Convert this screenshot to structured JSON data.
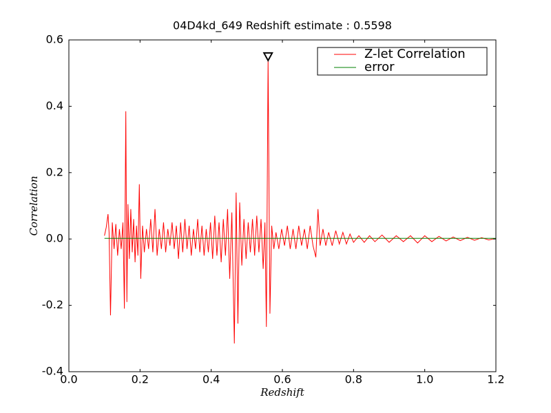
{
  "chart_data": {
    "type": "line",
    "title": "04D4kd_649 Redshift estimate : 0.5598",
    "xlabel": "Redshift",
    "ylabel": "Correlation",
    "xlim": [
      0,
      1.2
    ],
    "ylim": [
      -0.4,
      0.6
    ],
    "xticks": [
      {
        "value": 0,
        "label": "0.0"
      },
      0.2,
      0.4,
      0.6,
      0.8,
      {
        "value": 1,
        "label": "1.0"
      },
      1.2
    ],
    "yticks": [
      -0.4,
      -0.2,
      {
        "value": 0,
        "label": "0.0"
      },
      0.2,
      0.4,
      0.6
    ],
    "legend": "upper right",
    "peak": {
      "x": 0.5598,
      "y": 0.54
    },
    "series": [
      {
        "name": "Z-let Correlation",
        "color": "#ff0000",
        "x": [
          0.1,
          0.105,
          0.11,
          0.113,
          0.117,
          0.122,
          0.127,
          0.132,
          0.137,
          0.142,
          0.147,
          0.152,
          0.156,
          0.16,
          0.163,
          0.166,
          0.17,
          0.174,
          0.178,
          0.182,
          0.186,
          0.19,
          0.194,
          0.198,
          0.202,
          0.207,
          0.212,
          0.218,
          0.224,
          0.23,
          0.236,
          0.242,
          0.248,
          0.254,
          0.26,
          0.266,
          0.272,
          0.278,
          0.284,
          0.29,
          0.296,
          0.302,
          0.308,
          0.314,
          0.32,
          0.326,
          0.332,
          0.338,
          0.344,
          0.35,
          0.356,
          0.362,
          0.368,
          0.374,
          0.38,
          0.386,
          0.392,
          0.398,
          0.404,
          0.41,
          0.416,
          0.422,
          0.428,
          0.434,
          0.44,
          0.446,
          0.452,
          0.458,
          0.465,
          0.47,
          0.475,
          0.48,
          0.486,
          0.492,
          0.498,
          0.504,
          0.51,
          0.516,
          0.522,
          0.528,
          0.534,
          0.54,
          0.546,
          0.551,
          0.555,
          0.5598,
          0.565,
          0.57,
          0.576,
          0.582,
          0.59,
          0.598,
          0.606,
          0.614,
          0.622,
          0.63,
          0.638,
          0.646,
          0.654,
          0.662,
          0.67,
          0.678,
          0.686,
          0.694,
          0.7,
          0.706,
          0.714,
          0.722,
          0.73,
          0.74,
          0.75,
          0.76,
          0.77,
          0.78,
          0.79,
          0.8,
          0.815,
          0.83,
          0.845,
          0.86,
          0.88,
          0.9,
          0.92,
          0.94,
          0.96,
          0.98,
          1.0,
          1.02,
          1.04,
          1.06,
          1.08,
          1.1,
          1.12,
          1.14,
          1.16,
          1.18,
          1.2
        ],
        "values": [
          0.01,
          0.035,
          0.075,
          0.02,
          -0.23,
          0.05,
          -0.03,
          0.045,
          -0.05,
          0.03,
          -0.03,
          0.05,
          -0.21,
          0.385,
          -0.19,
          0.105,
          -0.06,
          0.09,
          -0.04,
          0.06,
          -0.07,
          0.04,
          -0.05,
          0.165,
          -0.12,
          0.04,
          -0.04,
          0.03,
          -0.03,
          0.06,
          -0.04,
          0.09,
          -0.05,
          0.03,
          -0.03,
          0.05,
          -0.04,
          0.03,
          -0.02,
          0.05,
          -0.03,
          0.04,
          -0.06,
          0.05,
          -0.04,
          0.06,
          -0.03,
          0.04,
          -0.05,
          0.03,
          -0.03,
          0.06,
          -0.04,
          0.04,
          -0.05,
          0.03,
          -0.04,
          0.05,
          -0.06,
          0.07,
          -0.05,
          0.05,
          -0.07,
          0.06,
          -0.05,
          0.09,
          -0.12,
          0.08,
          -0.315,
          0.14,
          -0.255,
          0.11,
          -0.08,
          0.06,
          -0.06,
          0.05,
          -0.04,
          0.06,
          -0.05,
          0.07,
          -0.04,
          0.06,
          -0.09,
          0.05,
          -0.265,
          0.54,
          -0.225,
          0.04,
          -0.03,
          0.02,
          -0.03,
          0.03,
          -0.02,
          0.04,
          -0.03,
          0.03,
          -0.03,
          0.04,
          -0.02,
          0.03,
          -0.03,
          0.04,
          -0.02,
          -0.055,
          0.09,
          -0.02,
          0.03,
          -0.02,
          0.02,
          -0.02,
          0.025,
          -0.015,
          0.02,
          -0.015,
          0.015,
          -0.01,
          0.01,
          -0.01,
          0.01,
          -0.008,
          0.012,
          -0.01,
          0.01,
          -0.008,
          0.01,
          -0.012,
          0.01,
          -0.008,
          0.008,
          -0.006,
          0.006,
          -0.005,
          0.005,
          -0.004,
          0.004,
          -0.003,
          0.002
        ]
      },
      {
        "name": "error",
        "color": "#008000",
        "x": [
          0.1,
          1.2
        ],
        "values": [
          0.002,
          0.002
        ]
      }
    ]
  }
}
